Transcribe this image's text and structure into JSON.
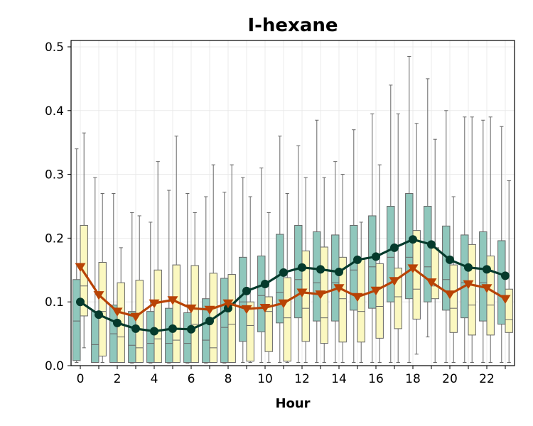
{
  "chart_data": {
    "type": "box",
    "title": "I-hexane",
    "xlabel": "Hour",
    "ylabel": "",
    "xlim": [
      -0.5,
      23.5
    ],
    "ylim": [
      0,
      0.51
    ],
    "grid": true,
    "x_ticks": [
      0,
      2,
      4,
      6,
      8,
      10,
      12,
      14,
      16,
      18,
      20,
      22
    ],
    "y_ticks": [
      0.0,
      0.1,
      0.2,
      0.3,
      0.4,
      0.5
    ],
    "x_tick_labels": [
      "0",
      "2",
      "4",
      "6",
      "8",
      "10",
      "12",
      "14",
      "16",
      "18",
      "20",
      "22"
    ],
    "y_tick_labels": [
      "0.0",
      "0.1",
      "0.2",
      "0.3",
      "0.4",
      "0.5"
    ],
    "hours": [
      0,
      1,
      2,
      3,
      4,
      5,
      6,
      7,
      8,
      9,
      10,
      11,
      12,
      13,
      14,
      15,
      16,
      17,
      18,
      19,
      20,
      21,
      22,
      23
    ],
    "series": [
      {
        "kind": "box",
        "color": "#8fc7bc",
        "boxes": [
          {
            "whislo": 0.005,
            "q1": 0.008,
            "med": 0.07,
            "q3": 0.135,
            "whishi": 0.34
          },
          {
            "whislo": 0.005,
            "q1": 0.005,
            "med": 0.033,
            "q3": 0.085,
            "whishi": 0.295
          },
          {
            "whislo": 0.005,
            "q1": 0.005,
            "med": 0.05,
            "q3": 0.095,
            "whishi": 0.27
          },
          {
            "whislo": 0.004,
            "q1": 0.005,
            "med": 0.032,
            "q3": 0.085,
            "whishi": 0.24
          },
          {
            "whislo": 0.004,
            "q1": 0.005,
            "med": 0.035,
            "q3": 0.085,
            "whishi": 0.225
          },
          {
            "whislo": 0.004,
            "q1": 0.005,
            "med": 0.035,
            "q3": 0.09,
            "whishi": 0.275
          },
          {
            "whislo": 0.004,
            "q1": 0.005,
            "med": 0.035,
            "q3": 0.083,
            "whishi": 0.27
          },
          {
            "whislo": 0.004,
            "q1": 0.005,
            "med": 0.04,
            "q3": 0.105,
            "whishi": 0.265
          },
          {
            "whislo": 0.004,
            "q1": 0.005,
            "med": 0.06,
            "q3": 0.137,
            "whishi": 0.272
          },
          {
            "whislo": 0.005,
            "q1": 0.038,
            "med": 0.1,
            "q3": 0.17,
            "whishi": 0.295
          },
          {
            "whislo": 0.005,
            "q1": 0.053,
            "med": 0.11,
            "q3": 0.172,
            "whishi": 0.31
          },
          {
            "whislo": 0.005,
            "q1": 0.067,
            "med": 0.115,
            "q3": 0.206,
            "whishi": 0.36
          },
          {
            "whislo": 0.005,
            "q1": 0.075,
            "med": 0.135,
            "q3": 0.22,
            "whishi": 0.345
          },
          {
            "whislo": 0.005,
            "q1": 0.07,
            "med": 0.13,
            "q3": 0.21,
            "whishi": 0.385
          },
          {
            "whislo": 0.005,
            "q1": 0.07,
            "med": 0.13,
            "q3": 0.205,
            "whishi": 0.32
          },
          {
            "whislo": 0.005,
            "q1": 0.087,
            "med": 0.15,
            "q3": 0.22,
            "whishi": 0.37
          },
          {
            "whislo": 0.005,
            "q1": 0.09,
            "med": 0.155,
            "q3": 0.235,
            "whishi": 0.395
          },
          {
            "whislo": 0.005,
            "q1": 0.1,
            "med": 0.17,
            "q3": 0.25,
            "whishi": 0.44
          },
          {
            "whislo": 0.005,
            "q1": 0.105,
            "med": 0.17,
            "q3": 0.27,
            "whishi": 0.485
          },
          {
            "whislo": 0.045,
            "q1": 0.1,
            "med": 0.155,
            "q3": 0.25,
            "whishi": 0.45
          },
          {
            "whislo": 0.005,
            "q1": 0.087,
            "med": 0.135,
            "q3": 0.219,
            "whishi": 0.4
          },
          {
            "whislo": 0.005,
            "q1": 0.075,
            "med": 0.13,
            "q3": 0.205,
            "whishi": 0.39
          },
          {
            "whislo": 0.005,
            "q1": 0.07,
            "med": 0.13,
            "q3": 0.21,
            "whishi": 0.385
          },
          {
            "whislo": 0.005,
            "q1": 0.065,
            "med": 0.11,
            "q3": 0.196,
            "whishi": 0.375
          }
        ]
      },
      {
        "kind": "box",
        "color": "#fbf8c0",
        "boxes": [
          {
            "whislo": 0.028,
            "q1": 0.078,
            "med": 0.125,
            "q3": 0.22,
            "whishi": 0.365
          },
          {
            "whislo": 0.005,
            "q1": 0.015,
            "med": 0.085,
            "q3": 0.162,
            "whishi": 0.27
          },
          {
            "whislo": 0.005,
            "q1": 0.005,
            "med": 0.045,
            "q3": 0.13,
            "whishi": 0.185
          },
          {
            "whislo": 0.005,
            "q1": 0.005,
            "med": 0.028,
            "q3": 0.134,
            "whishi": 0.235
          },
          {
            "whislo": 0.005,
            "q1": 0.005,
            "med": 0.042,
            "q3": 0.15,
            "whishi": 0.32
          },
          {
            "whislo": 0.005,
            "q1": 0.005,
            "med": 0.04,
            "q3": 0.158,
            "whishi": 0.36
          },
          {
            "whislo": 0.005,
            "q1": 0.005,
            "med": 0.065,
            "q3": 0.157,
            "whishi": 0.24
          },
          {
            "whislo": 0.005,
            "q1": 0.005,
            "med": 0.028,
            "q3": 0.145,
            "whishi": 0.315
          },
          {
            "whislo": 0.005,
            "q1": 0.005,
            "med": 0.065,
            "q3": 0.143,
            "whishi": 0.315
          },
          {
            "whislo": 0.005,
            "q1": 0.007,
            "med": 0.063,
            "q3": 0.1,
            "whishi": 0.265
          },
          {
            "whislo": 0.005,
            "q1": 0.022,
            "med": 0.085,
            "q3": 0.108,
            "whishi": 0.24
          },
          {
            "whislo": 0.005,
            "q1": 0.007,
            "med": 0.075,
            "q3": 0.138,
            "whishi": 0.27
          },
          {
            "whislo": 0.005,
            "q1": 0.038,
            "med": 0.09,
            "q3": 0.18,
            "whishi": 0.295
          },
          {
            "whislo": 0.005,
            "q1": 0.035,
            "med": 0.075,
            "q3": 0.186,
            "whishi": 0.295
          },
          {
            "whislo": 0.005,
            "q1": 0.037,
            "med": 0.105,
            "q3": 0.17,
            "whishi": 0.3
          },
          {
            "whislo": 0.005,
            "q1": 0.037,
            "med": 0.085,
            "q3": 0.168,
            "whishi": 0.225
          },
          {
            "whislo": 0.005,
            "q1": 0.043,
            "med": 0.093,
            "q3": 0.16,
            "whishi": 0.315
          },
          {
            "whislo": 0.005,
            "q1": 0.058,
            "med": 0.108,
            "q3": 0.153,
            "whishi": 0.395
          },
          {
            "whislo": 0.018,
            "q1": 0.073,
            "med": 0.12,
            "q3": 0.212,
            "whishi": 0.38
          },
          {
            "whislo": 0.005,
            "q1": 0.105,
            "med": 0.125,
            "q3": 0.185,
            "whishi": 0.355
          },
          {
            "whislo": 0.005,
            "q1": 0.052,
            "med": 0.09,
            "q3": 0.158,
            "whishi": 0.265
          },
          {
            "whislo": 0.005,
            "q1": 0.048,
            "med": 0.095,
            "q3": 0.19,
            "whishi": 0.39
          },
          {
            "whislo": 0.005,
            "q1": 0.048,
            "med": 0.095,
            "q3": 0.172,
            "whishi": 0.39
          },
          {
            "whislo": 0.005,
            "q1": 0.052,
            "med": 0.072,
            "q3": 0.12,
            "whishi": 0.29
          }
        ]
      },
      {
        "kind": "line",
        "color": "#053a2c",
        "marker": "circle",
        "values": [
          0.1,
          0.08,
          0.067,
          0.058,
          0.054,
          0.058,
          0.057,
          0.07,
          0.09,
          0.117,
          0.128,
          0.146,
          0.154,
          0.151,
          0.147,
          0.166,
          0.171,
          0.185,
          0.198,
          0.19,
          0.166,
          0.154,
          0.151,
          0.141
        ]
      },
      {
        "kind": "line",
        "color": "#b84305",
        "marker": "triangle-down",
        "values": [
          0.155,
          0.111,
          0.085,
          0.077,
          0.098,
          0.103,
          0.09,
          0.088,
          0.098,
          0.089,
          0.091,
          0.098,
          0.115,
          0.112,
          0.122,
          0.108,
          0.118,
          0.133,
          0.153,
          0.131,
          0.112,
          0.128,
          0.122,
          0.105
        ]
      }
    ]
  }
}
